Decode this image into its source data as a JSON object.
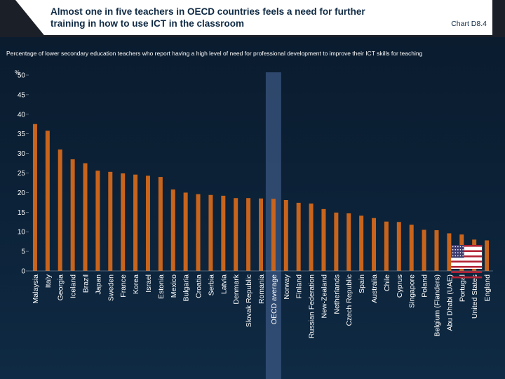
{
  "header": {
    "title": "Almost one in five teachers in OECD countries feels a need for further\ntraining in how to use ICT in the classroom",
    "chart_label": "Chart D8.4"
  },
  "subtitle": "Percentage of lower secondary education teachers who report having a high level of need for professional development to improve their ICT skills for teaching",
  "colors": {
    "bar": "#c8641c",
    "highlight": "#3d5a86",
    "text": "#ffffff",
    "gridline": "#1d3552"
  },
  "chart_data": {
    "type": "bar",
    "title": "Almost one in five teachers in OECD countries feels a need for further training in how to use ICT in the classroom",
    "ylabel": "%",
    "ylim": [
      0,
      50
    ],
    "yticks": [
      0,
      5,
      10,
      15,
      20,
      25,
      30,
      35,
      40,
      45,
      50
    ],
    "grid": false,
    "highlighted_category": "OECD average",
    "flag_marker": {
      "category": "United States",
      "icon": "us-flag-icon"
    },
    "categories": [
      "Malaysia",
      "Italy",
      "Georgia",
      "Iceland",
      "Brazil",
      "Japan",
      "Sweden",
      "France",
      "Korea",
      "Israel",
      "Estonia",
      "Mexico",
      "Bulgaria",
      "Croatia",
      "Serbia",
      "Latvia",
      "Denmark",
      "Slovak Republic",
      "Romania",
      "OECD average",
      "Norway",
      "Finland",
      "Russian Federation",
      "New-Zealand",
      "Netherlands",
      "Czech Republic",
      "Spain",
      "Australia",
      "Chile",
      "Cyprus",
      "Singapore",
      "Poland",
      "Belgium (Flanders)",
      "Abu Dhabi (UAE)",
      "Portugal",
      "United States",
      "England"
    ],
    "values": [
      37.5,
      35.8,
      31.0,
      28.5,
      27.5,
      25.6,
      25.3,
      24.9,
      24.6,
      24.3,
      24.0,
      20.8,
      20.0,
      19.6,
      19.4,
      19.2,
      18.6,
      18.6,
      18.5,
      18.4,
      18.1,
      17.4,
      17.2,
      15.8,
      14.9,
      14.7,
      14.1,
      13.5,
      12.6,
      12.5,
      11.8,
      10.5,
      10.4,
      9.6,
      9.3,
      8.0,
      7.8
    ]
  }
}
